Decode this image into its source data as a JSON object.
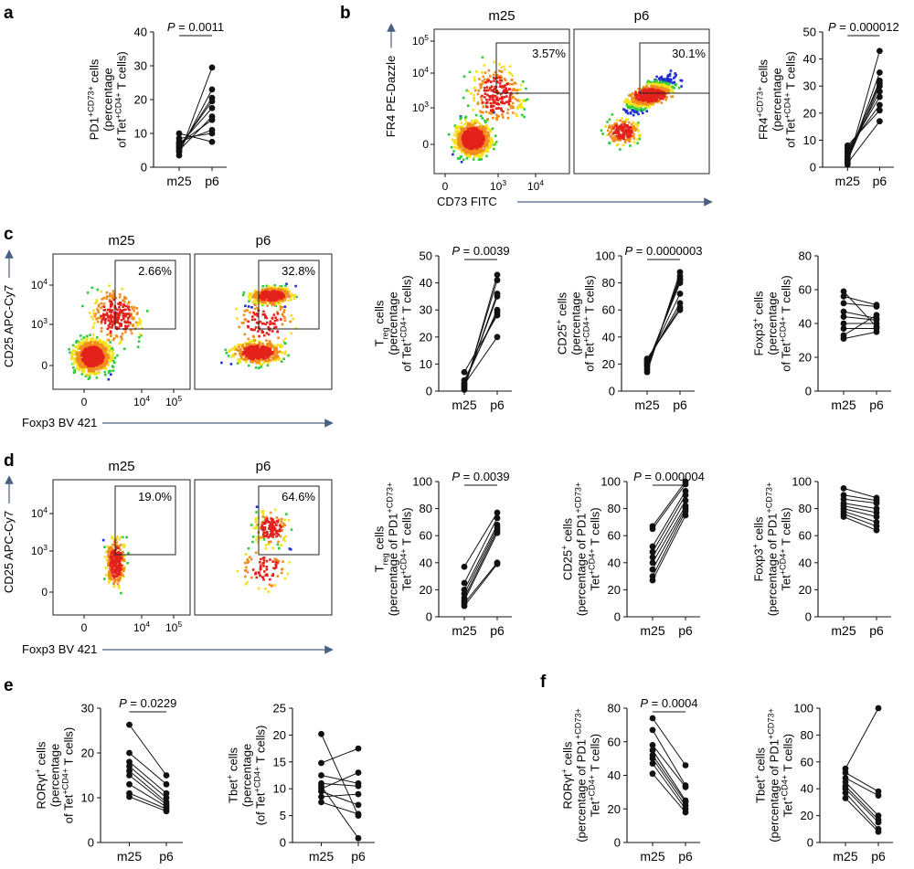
{
  "figure": {
    "panel_labels": [
      "a",
      "b",
      "c",
      "d",
      "e",
      "f"
    ],
    "colors": {
      "ink": "#111111",
      "axis_arrow": "#4a6080",
      "dot_blue": "#1f2fd6",
      "dot_green": "#2ecc3a",
      "dot_yellow": "#f2e21b",
      "dot_orange": "#f28c1b",
      "dot_red": "#e3221b"
    }
  },
  "flow_plots": [
    {
      "id": "b-m25",
      "panel": "b",
      "title": "m25",
      "gate_value": "3.57%",
      "population": "low"
    },
    {
      "id": "b-p6",
      "panel": "b",
      "title": "p6",
      "gate_value": "30.1%",
      "population": "diag"
    },
    {
      "id": "c-m25",
      "panel": "c",
      "title": "m25",
      "gate_value": "2.66%",
      "population": "low"
    },
    {
      "id": "c-p6",
      "panel": "c",
      "title": "p6",
      "gate_value": "32.8%",
      "population": "split"
    },
    {
      "id": "d-m25",
      "panel": "d",
      "title": "m25",
      "gate_value": "19.0%",
      "population": "sparse-low"
    },
    {
      "id": "d-p6",
      "panel": "d",
      "title": "p6",
      "gate_value": "64.6%",
      "population": "sparse-high"
    }
  ],
  "flow_axes": {
    "b": {
      "ylabel": "FR4 PE-Dazzle",
      "xlabel": "CD73 FITC",
      "yticks": [
        "10^5",
        "10^4",
        "10^3",
        "0"
      ],
      "xticks": [
        "0",
        "10^3",
        "10^4"
      ]
    },
    "c": {
      "ylabel": "CD25 APC-Cy7",
      "xlabel": "Foxp3 BV 421",
      "yticks": [
        "10^4",
        "10^3",
        "0"
      ],
      "xticks": [
        "0",
        "10^4",
        "10^5"
      ]
    },
    "d": {
      "ylabel": "CD25 APC-Cy7",
      "xlabel": "Foxp3 BV 421",
      "yticks": [
        "10^4",
        "10^3",
        "0"
      ],
      "xticks": [
        "0",
        "10^4",
        "10^5"
      ]
    }
  },
  "chart_data": [
    {
      "id": "a",
      "type": "scatter",
      "title": "",
      "categories": [
        "m25",
        "p6"
      ],
      "ylabel": [
        "PD1^+CD73^+ cells",
        "(percentage",
        "of Tet^+CD4^+ T cells)"
      ],
      "ylim": [
        0,
        40
      ],
      "yticks": [
        0,
        10,
        20,
        30,
        40
      ],
      "pvalue": "P = 0.0011",
      "pairs": [
        [
          3.5,
          29.5
        ],
        [
          4.5,
          23
        ],
        [
          5.5,
          20.5
        ],
        [
          6,
          19.5
        ],
        [
          6.5,
          17.5
        ],
        [
          7,
          14
        ],
        [
          7.5,
          11
        ],
        [
          8.5,
          10
        ],
        [
          10,
          7.5
        ],
        [
          5,
          15
        ]
      ]
    },
    {
      "id": "b",
      "type": "scatter",
      "title": "",
      "categories": [
        "m25",
        "p6"
      ],
      "ylabel": [
        "FR4^+CD73^+ cells",
        "(percentage",
        "of Tet^+CD4^+ T cells)"
      ],
      "ylim": [
        0,
        50
      ],
      "yticks": [
        0,
        10,
        20,
        30,
        40,
        50
      ],
      "pvalue": "P = 0.000012",
      "pairs": [
        [
          1,
          43
        ],
        [
          2,
          35
        ],
        [
          3,
          32
        ],
        [
          4,
          31
        ],
        [
          5,
          28
        ],
        [
          6,
          26
        ],
        [
          7,
          23
        ],
        [
          8,
          21
        ],
        [
          1.5,
          17
        ],
        [
          2.5,
          30
        ]
      ]
    },
    {
      "id": "c1",
      "type": "scatter",
      "title": "",
      "categories": [
        "m25",
        "p6"
      ],
      "ylabel": [
        "T_reg cells",
        "(percentage",
        "of Tet^+CD4^+ T cells)"
      ],
      "ylim": [
        0,
        50
      ],
      "yticks": [
        0,
        10,
        20,
        30,
        40,
        50
      ],
      "pvalue": "P = 0.0039",
      "pairs": [
        [
          0.5,
          43
        ],
        [
          1,
          41
        ],
        [
          1.5,
          36
        ],
        [
          2,
          35
        ],
        [
          3,
          30
        ],
        [
          4,
          29
        ],
        [
          7,
          28
        ],
        [
          2.5,
          20
        ]
      ]
    },
    {
      "id": "c2",
      "type": "scatter",
      "title": "",
      "categories": [
        "m25",
        "p6"
      ],
      "ylabel": [
        "CD25^+ cells",
        "(percentage",
        "of Tet^+CD4^+ T cells)"
      ],
      "ylim": [
        0,
        100
      ],
      "yticks": [
        0,
        20,
        40,
        60,
        80,
        100
      ],
      "pvalue": "P = 0.0000003",
      "pairs": [
        [
          14,
          88
        ],
        [
          16,
          85
        ],
        [
          18,
          83
        ],
        [
          19,
          82
        ],
        [
          20,
          80
        ],
        [
          21,
          72
        ],
        [
          22,
          65
        ],
        [
          23,
          62
        ],
        [
          24,
          60
        ]
      ]
    },
    {
      "id": "c3",
      "type": "scatter",
      "title": "",
      "categories": [
        "m25",
        "p6"
      ],
      "ylabel": [
        "Foxp3^+ cells",
        "(percentage",
        "of Tet^+CD4^+ T cells)"
      ],
      "ylim": [
        0,
        80
      ],
      "yticks": [
        0,
        20,
        40,
        60,
        80
      ],
      "pvalue": "",
      "pairs": [
        [
          59,
          38
        ],
        [
          56,
          51
        ],
        [
          52,
          50
        ],
        [
          47,
          43
        ],
        [
          44,
          42
        ],
        [
          40,
          40
        ],
        [
          37,
          37
        ],
        [
          33,
          45
        ],
        [
          31,
          35
        ]
      ]
    },
    {
      "id": "d1",
      "type": "scatter",
      "title": "",
      "categories": [
        "m25",
        "p6"
      ],
      "ylabel": [
        "T_reg cells",
        "(percentage of PD1^+CD73^+",
        "Tet^+CD4^+ T cells)"
      ],
      "ylim": [
        0,
        100
      ],
      "yticks": [
        0,
        20,
        40,
        60,
        80,
        100
      ],
      "pvalue": "P = 0.0039",
      "pairs": [
        [
          37,
          77
        ],
        [
          25,
          73
        ],
        [
          20,
          68
        ],
        [
          17,
          66
        ],
        [
          14,
          64
        ],
        [
          12,
          62
        ],
        [
          10,
          40
        ],
        [
          8,
          39
        ]
      ]
    },
    {
      "id": "d2",
      "type": "scatter",
      "title": "",
      "categories": [
        "m25",
        "p6"
      ],
      "ylabel": [
        "CD25^+ cells",
        "(percentage of PD1^+CD73^+",
        "Tet^+CD4^+ T cells)"
      ],
      "ylim": [
        0,
        100
      ],
      "yticks": [
        0,
        20,
        40,
        60,
        80,
        100
      ],
      "pvalue": "P = 0.000004",
      "pairs": [
        [
          67,
          100
        ],
        [
          65,
          98
        ],
        [
          52,
          93
        ],
        [
          48,
          90
        ],
        [
          44,
          86
        ],
        [
          40,
          82
        ],
        [
          35,
          80
        ],
        [
          30,
          78
        ],
        [
          27,
          75
        ]
      ]
    },
    {
      "id": "d3",
      "type": "scatter",
      "title": "",
      "categories": [
        "m25",
        "p6"
      ],
      "ylabel": [
        "Foxp3^+ cells",
        "(percentage of PD1^+CD73^+",
        "Tet^+CD4^+ T cells)"
      ],
      "ylim": [
        0,
        100
      ],
      "yticks": [
        0,
        20,
        40,
        60,
        80,
        100
      ],
      "pvalue": "",
      "pairs": [
        [
          95,
          88
        ],
        [
          90,
          86
        ],
        [
          87,
          84
        ],
        [
          84,
          80
        ],
        [
          82,
          77
        ],
        [
          80,
          74
        ],
        [
          78,
          70
        ],
        [
          76,
          67
        ],
        [
          74,
          64
        ]
      ]
    },
    {
      "id": "e1",
      "type": "scatter",
      "title": "",
      "categories": [
        "m25",
        "p6"
      ],
      "ylabel": [
        "RORγt^+ cells",
        "(percentage",
        "of Tet^+CD4^+ T cells)"
      ],
      "ylim": [
        0,
        30
      ],
      "yticks": [
        0,
        10,
        20,
        30
      ],
      "pvalue": "P = 0.0229",
      "pairs": [
        [
          26.3,
          15
        ],
        [
          20,
          13
        ],
        [
          18,
          11
        ],
        [
          17,
          10
        ],
        [
          16,
          9
        ],
        [
          15,
          8.5
        ],
        [
          13,
          8
        ],
        [
          11,
          7.5
        ],
        [
          10.2,
          7
        ]
      ]
    },
    {
      "id": "e2",
      "type": "scatter",
      "title": "",
      "categories": [
        "m25",
        "p6"
      ],
      "ylabel": [
        "Tbet^+ cells",
        "(percentage",
        "(of Tet^+CD4^+ T cells)"
      ],
      "ylim": [
        0,
        25
      ],
      "yticks": [
        0,
        5,
        10,
        15,
        20,
        25
      ],
      "pvalue": "",
      "pairs": [
        [
          20.2,
          5
        ],
        [
          14.8,
          17.5
        ],
        [
          12.5,
          11
        ],
        [
          11,
          10.5
        ],
        [
          10,
          13
        ],
        [
          9.5,
          7
        ],
        [
          8.5,
          9
        ],
        [
          7.5,
          5.3
        ],
        [
          10.5,
          0.8
        ]
      ]
    },
    {
      "id": "f1",
      "type": "scatter",
      "title": "",
      "categories": [
        "m25",
        "p6"
      ],
      "ylabel": [
        "RORγt^+ cells",
        "(percentage of PD1^+CD73^+",
        "Tet^+CD4^+ T cells)"
      ],
      "ylim": [
        0,
        80
      ],
      "yticks": [
        0,
        20,
        40,
        60,
        80
      ],
      "pvalue": "P = 0.0004",
      "pairs": [
        [
          74,
          46
        ],
        [
          67,
          34
        ],
        [
          58,
          33
        ],
        [
          55,
          25
        ],
        [
          52,
          24
        ],
        [
          50,
          22
        ],
        [
          47,
          20
        ],
        [
          41,
          18
        ]
      ]
    },
    {
      "id": "f2",
      "type": "scatter",
      "title": "",
      "categories": [
        "m25",
        "p6"
      ],
      "ylabel": [
        "Tbet^+ cells",
        "(percentage of PD1^+CD73^+",
        "Tet^+CD4^+ T cells)"
      ],
      "ylim": [
        0,
        100
      ],
      "yticks": [
        0,
        20,
        40,
        60,
        80,
        100
      ],
      "pvalue": "",
      "pairs": [
        [
          55,
          100
        ],
        [
          52,
          38
        ],
        [
          48,
          35
        ],
        [
          45,
          20
        ],
        [
          42,
          17
        ],
        [
          40,
          15
        ],
        [
          37,
          10
        ],
        [
          33,
          8
        ]
      ]
    }
  ]
}
